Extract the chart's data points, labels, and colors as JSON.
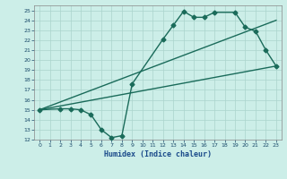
{
  "xlabel": "Humidex (Indice chaleur)",
  "bg_color": "#cceee8",
  "grid_color": "#aad4cc",
  "line_color": "#1a6b5a",
  "xlim": [
    -0.5,
    23.5
  ],
  "ylim": [
    12,
    25.5
  ],
  "yticks": [
    12,
    13,
    14,
    15,
    16,
    17,
    18,
    19,
    20,
    21,
    22,
    23,
    24,
    25
  ],
  "xticks": [
    0,
    1,
    2,
    3,
    4,
    5,
    6,
    7,
    8,
    9,
    10,
    11,
    12,
    13,
    14,
    15,
    16,
    17,
    18,
    19,
    20,
    21,
    22,
    23
  ],
  "curve1_x": [
    0,
    2,
    3,
    4,
    5,
    6,
    7,
    8,
    9,
    12,
    13,
    14,
    15,
    16,
    17,
    19,
    20,
    21,
    22,
    23
  ],
  "curve1_y": [
    15,
    15.1,
    15.1,
    15.0,
    14.5,
    13.0,
    12.2,
    12.4,
    17.6,
    22.1,
    23.5,
    24.9,
    24.3,
    24.3,
    24.8,
    24.8,
    23.3,
    22.9,
    21.0,
    19.4
  ],
  "curve2_x": [
    0,
    23
  ],
  "curve2_y": [
    15.0,
    24.0
  ],
  "curve3_x": [
    0,
    23
  ],
  "curve3_y": [
    15.0,
    19.4
  ],
  "line_width": 1.0,
  "marker": "D",
  "marker_size": 2.5
}
